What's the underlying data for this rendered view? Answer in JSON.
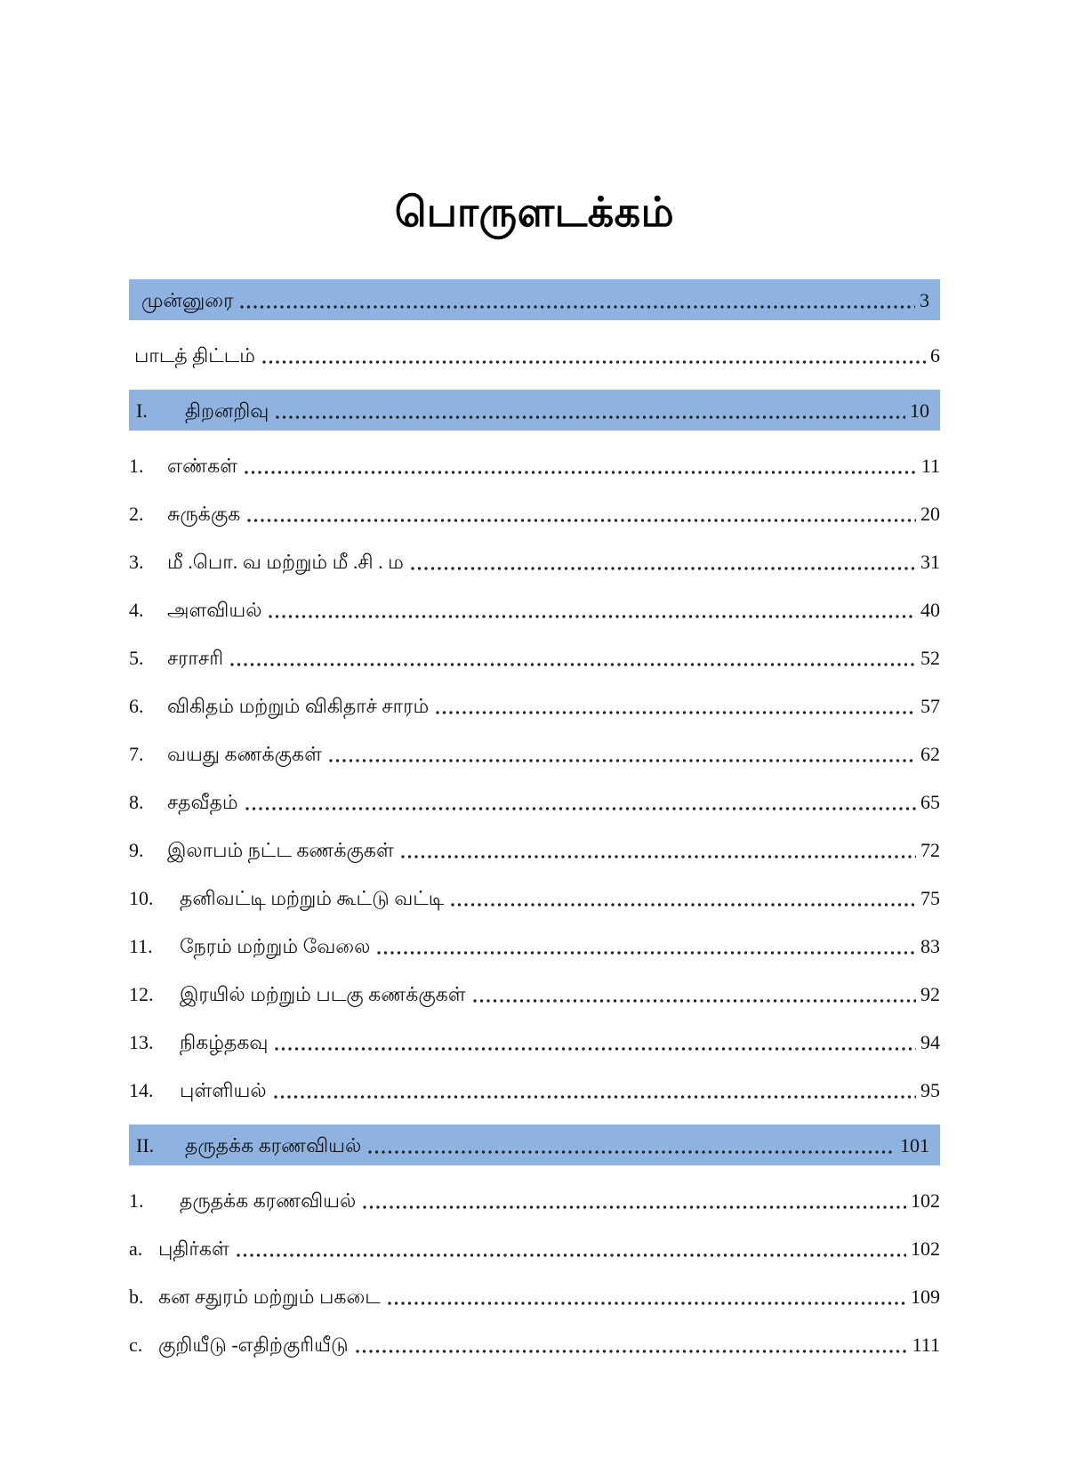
{
  "doc": {
    "title": "பொருளடக்கம்"
  },
  "colors": {
    "highlight_bg": "#8FB3E0",
    "text": "#111111",
    "dots": "#222222"
  },
  "toc": {
    "entries": [
      {
        "num": "",
        "title": "முன்னுரை",
        "page": "3",
        "highlight": true,
        "level": "front"
      },
      {
        "num": "",
        "title": "பாடத் திட்டம்",
        "page": "6",
        "highlight": false,
        "level": "front"
      },
      {
        "num": "I.",
        "title": "திறனறிவு",
        "page": "10",
        "highlight": true,
        "level": "section"
      },
      {
        "num": "1.",
        "title": "எண்கள்",
        "page": "11",
        "highlight": false,
        "level": "item"
      },
      {
        "num": "2.",
        "title": "சுருக்குக",
        "page": "20",
        "highlight": false,
        "level": "item"
      },
      {
        "num": "3.",
        "title": "மீ .பொ. வ  மற்றும் மீ .சி . ம",
        "page": "31",
        "highlight": false,
        "level": "item"
      },
      {
        "num": "4.",
        "title": "அளவியல்",
        "page": "40",
        "highlight": false,
        "level": "item"
      },
      {
        "num": "5.",
        "title": "சராசரி",
        "page": "52",
        "highlight": false,
        "level": "item"
      },
      {
        "num": "6.",
        "title": "விகிதம் மற்றும் விகிதாச் சாரம்",
        "page": "57",
        "highlight": false,
        "level": "item"
      },
      {
        "num": "7.",
        "title": "வயது கணக்குகள்",
        "page": "62",
        "highlight": false,
        "level": "item"
      },
      {
        "num": "8.",
        "title": "சதவீதம்",
        "page": "65",
        "highlight": false,
        "level": "item"
      },
      {
        "num": "9.",
        "title": "இலாபம்  நட்ட கணக்குகள்",
        "page": "72",
        "highlight": false,
        "level": "item"
      },
      {
        "num": "10.",
        "title": "தனிவட்டி மற்றும் கூட்டு வட்டி",
        "page": "75",
        "highlight": false,
        "level": "item2"
      },
      {
        "num": "11.",
        "title": "நேரம் மற்றும் வேலை",
        "page": "83",
        "highlight": false,
        "level": "item2"
      },
      {
        "num": "12.",
        "title": "இரயில்  மற்றும் படகு  கணக்குகள்",
        "page": "92",
        "highlight": false,
        "level": "item2"
      },
      {
        "num": "13.",
        "title": "நிகழ்தகவு",
        "page": "94",
        "highlight": false,
        "level": "item2"
      },
      {
        "num": "14.",
        "title": "புள்ளியல்",
        "page": "95",
        "highlight": false,
        "level": "item2"
      },
      {
        "num": "II.",
        "title": "தருதக்க  கரணவியல்",
        "page": "101",
        "highlight": true,
        "level": "section"
      },
      {
        "num": "1.",
        "title": "தருதக்க  கரணவியல்",
        "page": "102",
        "highlight": false,
        "level": "item2"
      },
      {
        "num": "a.",
        "title": "புதிர்கள்",
        "page": "102",
        "highlight": false,
        "level": "sub"
      },
      {
        "num": "b.",
        "title": "கன சதுரம் மற்றும்  பகடை",
        "page": "109",
        "highlight": false,
        "level": "sub"
      },
      {
        "num": "c.",
        "title": "குறியீடு -எதிற்குரியீடு",
        "page": "111",
        "highlight": false,
        "level": "sub"
      }
    ]
  }
}
